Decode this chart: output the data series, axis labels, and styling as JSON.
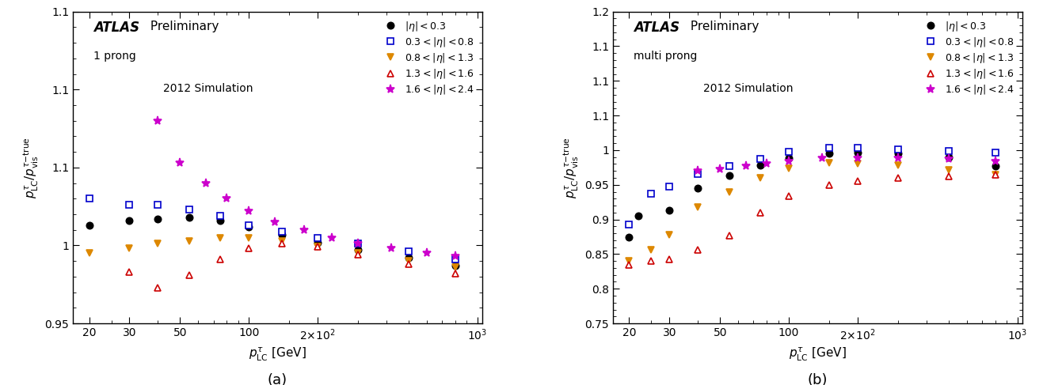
{
  "panel_a": {
    "subtitle": "1 prong",
    "year": "2012 Simulation",
    "ylim": [
      0.95,
      1.15
    ],
    "xlim": [
      17,
      1050
    ],
    "yticks": [
      0.95,
      1.0,
      1.05,
      1.1,
      1.15
    ],
    "xticks_major": [
      20,
      30,
      50,
      100,
      200,
      1000
    ],
    "series": [
      {
        "label": "|\\eta| < 0.3",
        "color": "black",
        "marker": "o",
        "open": false,
        "pts_x": [
          20,
          30,
          40,
          55,
          75,
          100,
          140,
          200,
          300,
          500,
          800
        ],
        "pts_y": [
          1.013,
          1.016,
          1.017,
          1.018,
          1.016,
          1.012,
          1.007,
          1.002,
          0.997,
          0.992,
          0.987
        ]
      },
      {
        "label": "0.3 < |\\eta| < 0.8",
        "color": "#0000cc",
        "marker": "s",
        "open": true,
        "pts_x": [
          20,
          30,
          40,
          55,
          75,
          100,
          140,
          200,
          300,
          500,
          800
        ],
        "pts_y": [
          1.03,
          1.026,
          1.026,
          1.023,
          1.019,
          1.013,
          1.009,
          1.005,
          1.001,
          0.996,
          0.991
        ]
      },
      {
        "label": "0.8 < |\\eta| < 1.3",
        "color": "#dd8800",
        "marker": "v",
        "open": false,
        "pts_x": [
          20,
          30,
          40,
          55,
          75,
          100,
          140,
          200,
          300,
          500,
          800
        ],
        "pts_y": [
          0.995,
          0.998,
          1.001,
          1.003,
          1.005,
          1.005,
          1.003,
          0.999,
          0.995,
          0.99,
          0.986
        ]
      },
      {
        "label": "1.3 < |\\eta| < 1.6",
        "color": "#cc0000",
        "marker": "^",
        "open": true,
        "pts_x": [
          30,
          40,
          55,
          75,
          100,
          140,
          200,
          300,
          500,
          800
        ],
        "pts_y": [
          0.983,
          0.973,
          0.981,
          0.991,
          0.998,
          1.001,
          0.999,
          0.994,
          0.988,
          0.982
        ]
      },
      {
        "label": "1.6 < |\\eta| < 2.4",
        "color": "#cc00cc",
        "marker": "x",
        "open": false,
        "pts_x": [
          40,
          50,
          65,
          80,
          100,
          130,
          175,
          230,
          300,
          420,
          600,
          800
        ],
        "pts_y": [
          1.08,
          1.053,
          1.04,
          1.03,
          1.022,
          1.015,
          1.01,
          1.005,
          1.001,
          0.998,
          0.995,
          0.993
        ]
      }
    ]
  },
  "panel_b": {
    "subtitle": "multi prong",
    "year": "2012 Simulation",
    "ylim": [
      0.75,
      1.2
    ],
    "xlim": [
      17,
      1050
    ],
    "yticks": [
      0.75,
      0.8,
      0.85,
      0.9,
      0.95,
      1.0,
      1.05,
      1.1,
      1.15,
      1.2
    ],
    "xticks_major": [
      20,
      30,
      50,
      100,
      200,
      1000
    ],
    "series": [
      {
        "label": "|\\eta| < 0.3",
        "color": "black",
        "marker": "o",
        "open": false,
        "pts_x": [
          20,
          22,
          30,
          40,
          55,
          75,
          100,
          150,
          200,
          300,
          500,
          800
        ],
        "pts_y": [
          0.875,
          0.905,
          0.913,
          0.945,
          0.963,
          0.978,
          0.988,
          0.995,
          0.997,
          0.995,
          0.99,
          0.977
        ]
      },
      {
        "label": "0.3 < |\\eta| < 0.8",
        "color": "#0000cc",
        "marker": "s",
        "open": true,
        "pts_x": [
          20,
          25,
          30,
          40,
          55,
          75,
          100,
          150,
          200,
          300,
          500,
          800
        ],
        "pts_y": [
          0.893,
          0.937,
          0.947,
          0.966,
          0.977,
          0.987,
          0.998,
          1.003,
          1.003,
          1.001,
          0.999,
          0.997
        ]
      },
      {
        "label": "0.8 < |\\eta| < 1.3",
        "color": "#dd8800",
        "marker": "v",
        "open": false,
        "pts_x": [
          20,
          25,
          30,
          40,
          55,
          75,
          100,
          150,
          200,
          300,
          500,
          800
        ],
        "pts_y": [
          0.84,
          0.856,
          0.878,
          0.918,
          0.94,
          0.96,
          0.974,
          0.982,
          0.981,
          0.978,
          0.971,
          0.964
        ]
      },
      {
        "label": "1.3 < |\\eta| < 1.6",
        "color": "#cc0000",
        "marker": "^",
        "open": true,
        "pts_x": [
          20,
          25,
          30,
          40,
          55,
          75,
          100,
          150,
          200,
          300,
          500,
          800
        ],
        "pts_y": [
          0.835,
          0.84,
          0.842,
          0.856,
          0.877,
          0.91,
          0.934,
          0.95,
          0.956,
          0.96,
          0.962,
          0.964
        ]
      },
      {
        "label": "1.6 < |\\eta| < 2.4",
        "color": "#cc00cc",
        "marker": "x",
        "open": false,
        "pts_x": [
          40,
          50,
          65,
          80,
          100,
          140,
          200,
          300,
          500,
          800
        ],
        "pts_y": [
          0.97,
          0.972,
          0.977,
          0.981,
          0.984,
          0.988,
          0.989,
          0.988,
          0.987,
          0.984
        ]
      }
    ]
  }
}
